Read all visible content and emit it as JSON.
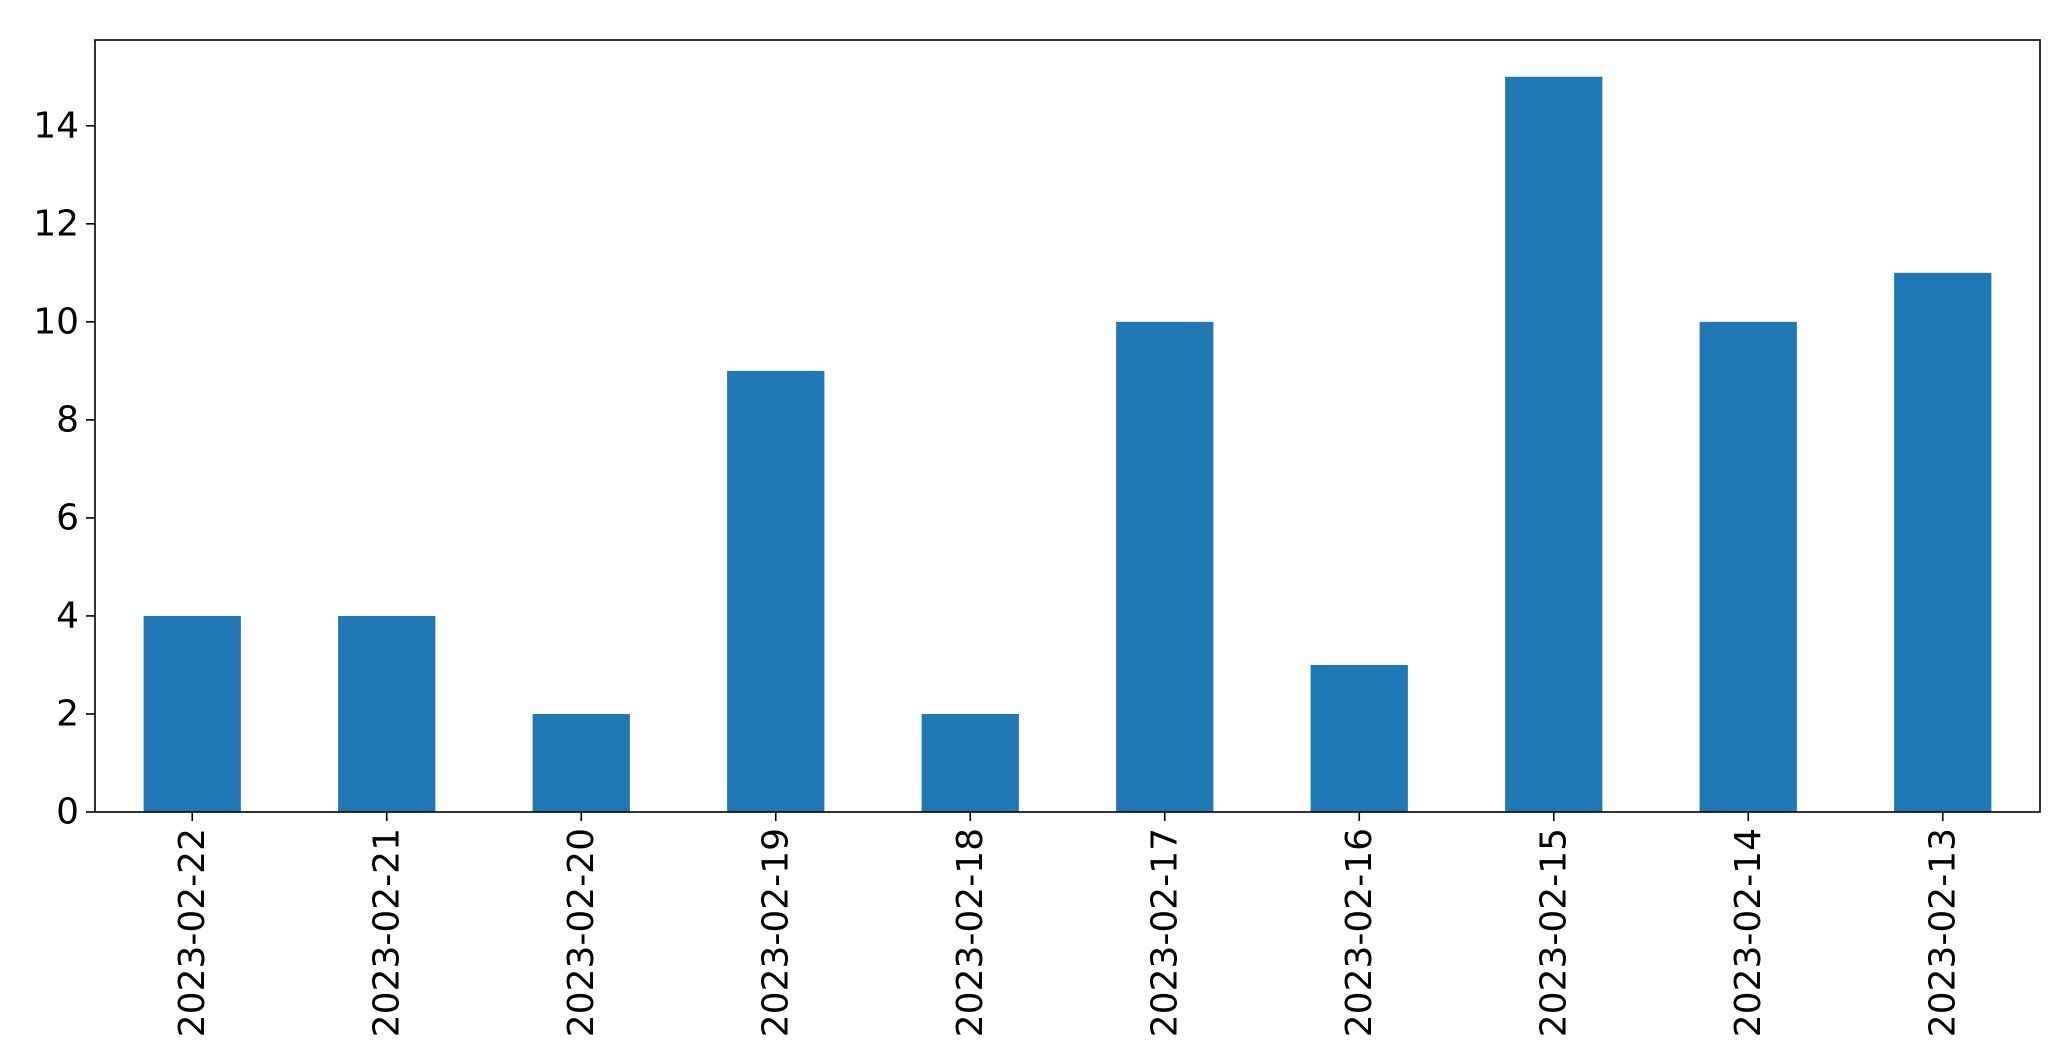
{
  "chart_data": {
    "type": "bar",
    "title": "",
    "xlabel": "",
    "ylabel": "",
    "categories": [
      "2023-02-22",
      "2023-02-21",
      "2023-02-20",
      "2023-02-19",
      "2023-02-18",
      "2023-02-17",
      "2023-02-16",
      "2023-02-15",
      "2023-02-14",
      "2023-02-13"
    ],
    "values": [
      4,
      4,
      2,
      9,
      2,
      10,
      3,
      15,
      10,
      11
    ],
    "ylim": [
      0,
      15.75
    ],
    "yticks": [
      0,
      2,
      4,
      6,
      8,
      10,
      12,
      14
    ],
    "ytick_labels": [
      "0",
      "2",
      "4",
      "6",
      "8",
      "10",
      "12",
      "14"
    ],
    "bar_color": "#1f77b4",
    "grid": false,
    "legend": "none"
  }
}
